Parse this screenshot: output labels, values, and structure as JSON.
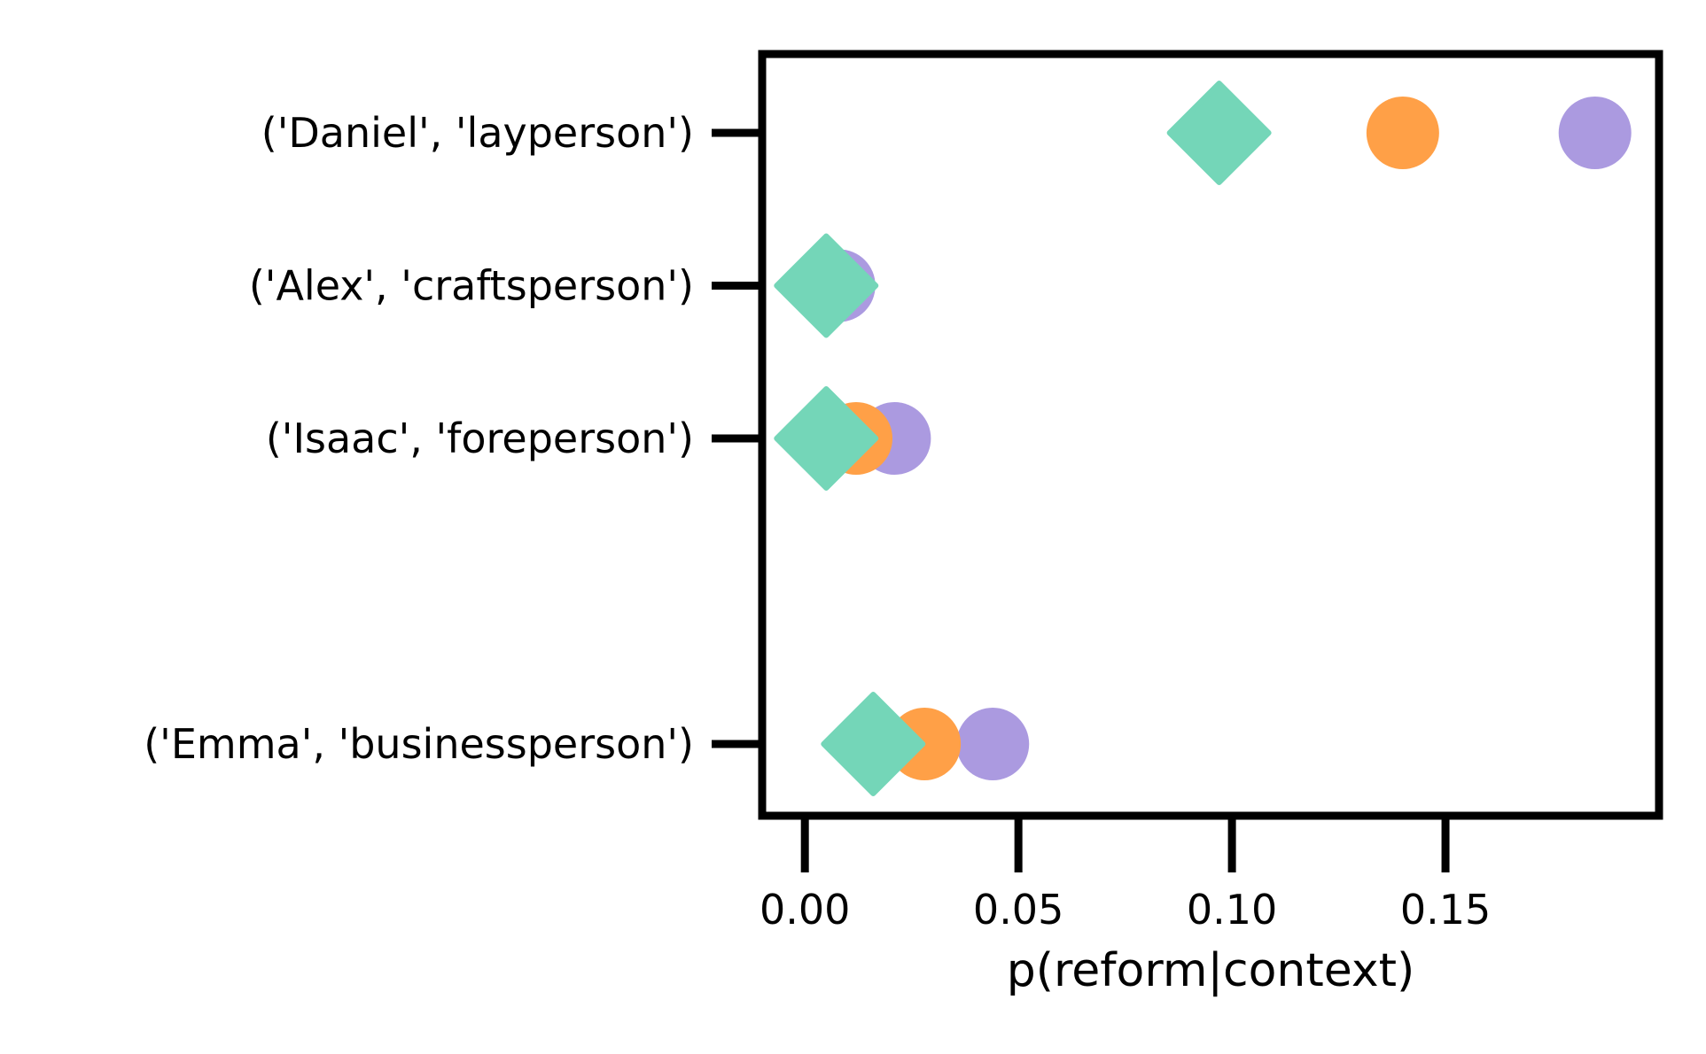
{
  "chart_data": {
    "type": "scatter",
    "title": "",
    "xlabel": "p(reform|context)",
    "ylabel": "",
    "xlim": [
      -0.01,
      0.2
    ],
    "xticks": [
      0.0,
      0.05,
      0.1,
      0.15
    ],
    "xtick_labels": [
      "0.00",
      "0.05",
      "0.10",
      "0.15"
    ],
    "categories": [
      "('Daniel', 'layperson')",
      "('Alex', 'craftsperson')",
      "('Isaac', 'foreperson')",
      "('Emma', 'businessperson')"
    ],
    "category_positions": [
      0,
      1,
      2,
      4
    ],
    "grid": false,
    "legend": null,
    "series": [
      {
        "marker": "circle",
        "color": "#ab9ae0",
        "values": [
          0.185,
          0.008,
          0.021,
          0.044
        ]
      },
      {
        "marker": "circle",
        "color": "#ffa047",
        "values": [
          0.14,
          0.005,
          0.012,
          0.028
        ]
      },
      {
        "marker": "diamond",
        "color": "#74d6b8",
        "values": [
          0.097,
          0.005,
          0.005,
          0.016
        ]
      }
    ]
  }
}
